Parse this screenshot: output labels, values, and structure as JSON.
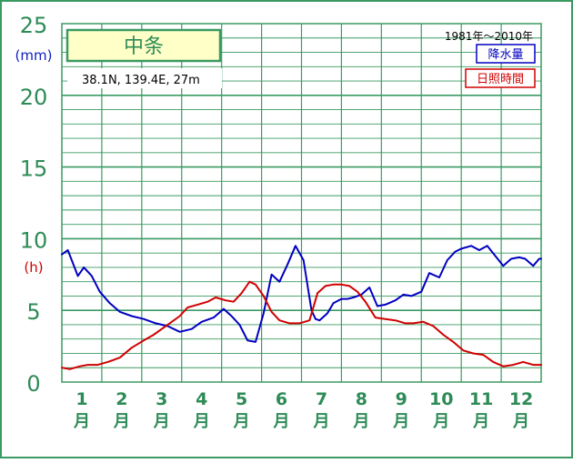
{
  "chart_data": {
    "type": "line",
    "station": {
      "name": "中条",
      "location": "38.1N,  139.4E,  27m"
    },
    "period": "1981年〜2010年",
    "legend": [
      {
        "label": "降水量",
        "color": "#0000c0"
      },
      {
        "label": "日照時間",
        "color": "#d00000"
      }
    ],
    "unit_precip": "(mm)",
    "unit_sun": "(h)",
    "ylim": [
      0,
      25
    ],
    "y_ticks": [
      "0",
      "5",
      "10",
      "15",
      "20",
      "25"
    ],
    "months": [
      {
        "num": "1",
        "kanji": "月"
      },
      {
        "num": "2",
        "kanji": "月"
      },
      {
        "num": "3",
        "kanji": "月"
      },
      {
        "num": "4",
        "kanji": "月"
      },
      {
        "num": "5",
        "kanji": "月"
      },
      {
        "num": "6",
        "kanji": "月"
      },
      {
        "num": "7",
        "kanji": "月"
      },
      {
        "num": "8",
        "kanji": "月"
      },
      {
        "num": "9",
        "kanji": "月"
      },
      {
        "num": "10",
        "kanji": "月"
      },
      {
        "num": "11",
        "kanji": "月"
      },
      {
        "num": "12",
        "kanji": "月"
      }
    ],
    "x_range": [
      0.5,
      12.5
    ],
    "series": [
      {
        "name": "降水量",
        "color": "#0000c0",
        "x": [
          0.5,
          0.65,
          0.9,
          1.05,
          1.25,
          1.45,
          1.7,
          1.95,
          2.25,
          2.55,
          2.85,
          3.15,
          3.45,
          3.75,
          4.0,
          4.3,
          4.55,
          4.75,
          4.95,
          5.15,
          5.35,
          5.55,
          5.75,
          5.95,
          6.15,
          6.35,
          6.55,
          6.75,
          6.85,
          6.95,
          7.15,
          7.3,
          7.5,
          7.65,
          7.8,
          8.0,
          8.2,
          8.4,
          8.6,
          8.85,
          9.05,
          9.25,
          9.5,
          9.7,
          9.95,
          10.15,
          10.35,
          10.5,
          10.75,
          10.95,
          11.15,
          11.35,
          11.55,
          11.75,
          11.95,
          12.1,
          12.3,
          12.45,
          12.5
        ],
        "values": [
          8.9,
          9.2,
          7.4,
          8.0,
          7.4,
          6.3,
          5.5,
          4.9,
          4.6,
          4.4,
          4.1,
          3.9,
          3.5,
          3.7,
          4.2,
          4.5,
          5.1,
          4.6,
          4.0,
          2.9,
          2.8,
          4.8,
          7.5,
          7.0,
          8.2,
          9.5,
          8.5,
          5.0,
          4.4,
          4.3,
          4.8,
          5.5,
          5.8,
          5.8,
          5.9,
          6.1,
          6.6,
          5.3,
          5.4,
          5.7,
          6.1,
          6.0,
          6.3,
          7.6,
          7.3,
          8.5,
          9.1,
          9.3,
          9.5,
          9.2,
          9.5,
          8.8,
          8.1,
          8.6,
          8.7,
          8.6,
          8.1,
          8.6,
          8.6
        ],
        "notes": ""
      },
      {
        "name": "日照時間",
        "color": "#d00000",
        "x": [
          0.5,
          0.7,
          0.95,
          1.15,
          1.4,
          1.65,
          1.95,
          2.25,
          2.55,
          2.8,
          3.0,
          3.2,
          3.45,
          3.65,
          3.9,
          4.15,
          4.35,
          4.6,
          4.8,
          5.0,
          5.2,
          5.35,
          5.55,
          5.75,
          5.95,
          6.2,
          6.45,
          6.7,
          6.9,
          7.1,
          7.3,
          7.5,
          7.7,
          7.9,
          8.1,
          8.35,
          8.6,
          8.85,
          9.1,
          9.3,
          9.55,
          9.8,
          10.05,
          10.3,
          10.55,
          10.8,
          11.05,
          11.3,
          11.55,
          11.8,
          12.05,
          12.3,
          12.5
        ],
        "values": [
          1.0,
          0.9,
          1.1,
          1.2,
          1.2,
          1.4,
          1.7,
          2.4,
          2.9,
          3.3,
          3.7,
          4.1,
          4.6,
          5.2,
          5.4,
          5.6,
          5.9,
          5.7,
          5.6,
          6.2,
          7.0,
          6.8,
          6.0,
          4.9,
          4.3,
          4.1,
          4.1,
          4.3,
          6.2,
          6.7,
          6.8,
          6.8,
          6.7,
          6.3,
          5.6,
          4.5,
          4.4,
          4.3,
          4.1,
          4.1,
          4.2,
          3.9,
          3.3,
          2.8,
          2.2,
          2.0,
          1.9,
          1.4,
          1.1,
          1.2,
          1.4,
          1.2,
          1.2
        ],
        "notes": ""
      }
    ],
    "grid": true
  }
}
